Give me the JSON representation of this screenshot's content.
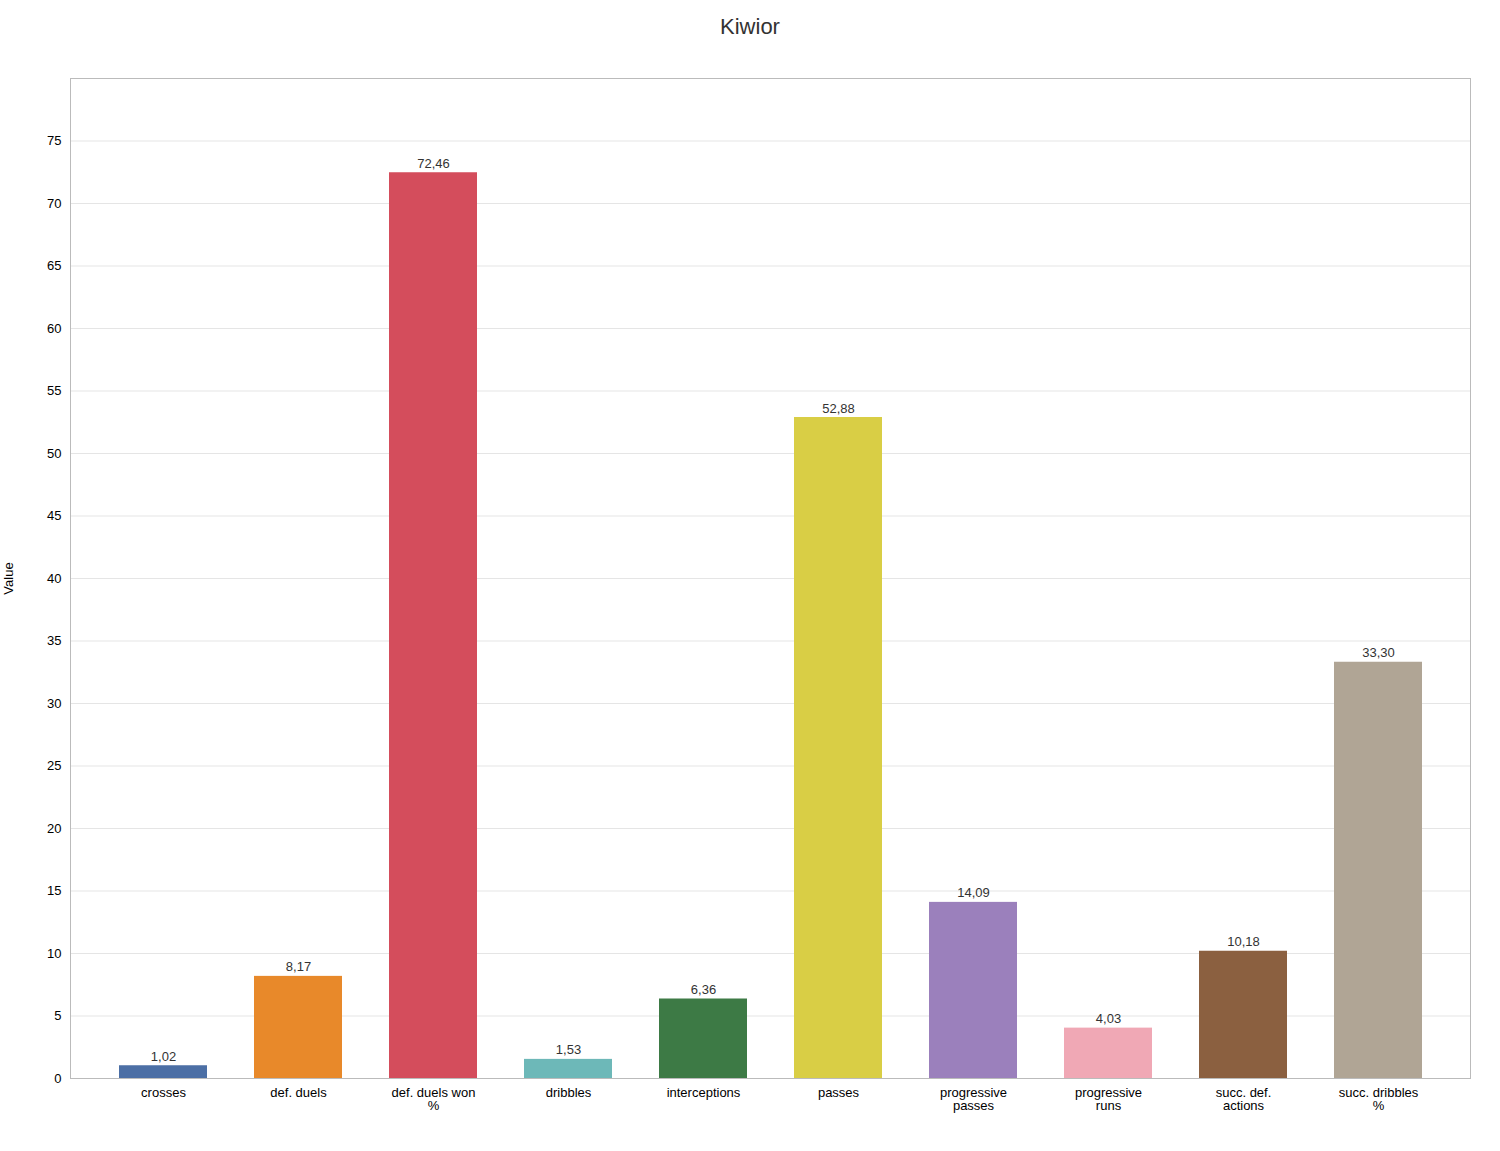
{
  "chart_data": {
    "type": "bar",
    "title": "Kiwior",
    "categories": [
      "crosses",
      "def. duels",
      "def. duels won\n%",
      "dribbles",
      "interceptions",
      "passes",
      "progressive\npasses",
      "progressive\nruns",
      "succ. def.\nactions",
      "succ. dribbles\n%"
    ],
    "values": [
      1.02,
      8.17,
      72.46,
      1.53,
      6.36,
      52.88,
      14.09,
      4.03,
      10.18,
      33.3
    ],
    "value_labels": [
      "1,02",
      "8,17",
      "72,46",
      "1,53",
      "6,36",
      "52,88",
      "14,09",
      "4,03",
      "10,18",
      "33,30"
    ],
    "colors": [
      "#4c6fa5",
      "#e8892a",
      "#d44d5c",
      "#6db8b8",
      "#3d7a45",
      "#d9ce45",
      "#9b80bc",
      "#f0a8b5",
      "#8b6040",
      "#b0a595"
    ],
    "ylabel": "Value",
    "ylim": [
      0,
      80
    ],
    "yticks": [
      0,
      5,
      10,
      15,
      20,
      25,
      30,
      35,
      40,
      45,
      50,
      55,
      60,
      65,
      70,
      75
    ],
    "grid": true,
    "data_labels": true
  }
}
